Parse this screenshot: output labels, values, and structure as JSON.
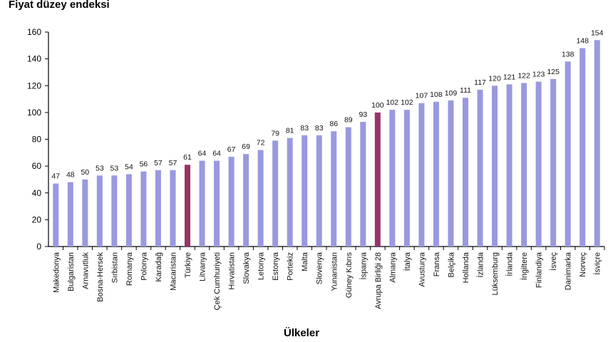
{
  "chart_data": {
    "type": "bar",
    "ylabel": "Fiyat düzey endeksi",
    "xlabel": "Ülkeler",
    "ylim": [
      0,
      160
    ],
    "yticks": [
      0,
      20,
      40,
      60,
      80,
      100,
      120,
      140,
      160
    ],
    "grid": false,
    "categories": [
      "Makedonya",
      "Bulgaristan",
      "Arnavutluk",
      "Bosna-Hersek",
      "Sırbistan",
      "Romanya",
      "Polonya",
      "Karadağ",
      "Macaristan",
      "Türkiye",
      "Litvanya",
      "Çek Cumhuriyeti",
      "Hırvatistan",
      "Slovakya",
      "Letonya",
      "Estonya",
      "Portekiz",
      "Malta",
      "Slovenya",
      "Yunanistan",
      "Güney Kıbrıs",
      "İspanya",
      "Avrupa Birliği 28",
      "Almanya",
      "İtalya",
      "Avusturya",
      "Fransa",
      "Belçika",
      "Hollanda",
      "İzlanda",
      "Lüksemburg",
      "İrlanda",
      "İngiltere",
      "Finlandiya",
      "İsveç",
      "Danimarka",
      "Norveç",
      "İsviçre"
    ],
    "values": [
      47,
      48,
      50,
      53,
      53,
      54,
      56,
      57,
      57,
      61,
      64,
      64,
      67,
      69,
      72,
      79,
      81,
      83,
      83,
      86,
      89,
      93,
      100,
      102,
      102,
      107,
      108,
      109,
      111,
      117,
      120,
      121,
      122,
      123,
      125,
      138,
      148,
      154
    ],
    "highlighted": [
      "Türkiye",
      "Avrupa Birliği 28"
    ],
    "colors": {
      "bar": "#9999e0",
      "highlight": "#993366",
      "axis": "#000000"
    }
  }
}
